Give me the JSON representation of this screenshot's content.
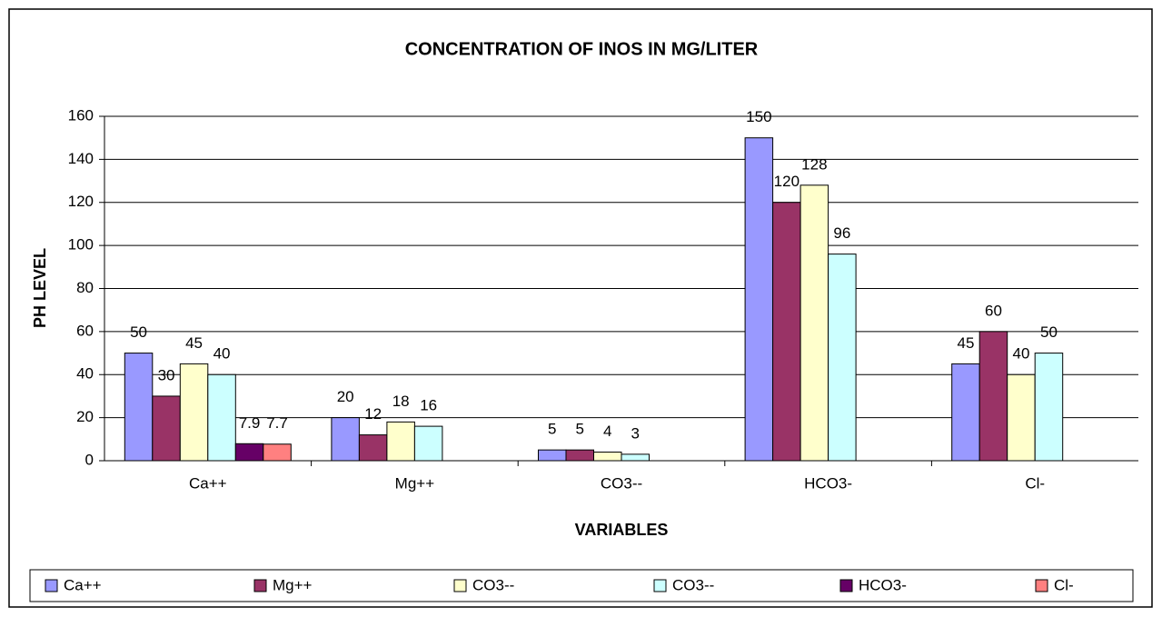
{
  "chart_data": {
    "type": "bar",
    "title": "CONCENTRATION OF INOS IN MG/LITER",
    "x_label": "VARIABLES",
    "y_label": "PH LEVEL",
    "categories": [
      "Ca++",
      "Mg++",
      "CO3--",
      "HCO3-",
      "Cl-"
    ],
    "series": [
      {
        "name": "Ca++",
        "color": "#9999ff",
        "values": [
          50,
          20,
          5,
          150,
          45
        ]
      },
      {
        "name": "Mg++",
        "color": "#993366",
        "values": [
          30,
          12,
          5,
          120,
          60
        ]
      },
      {
        "name": "CO3--",
        "color": "#ffffcc",
        "values": [
          45,
          18,
          4,
          128,
          40
        ]
      },
      {
        "name": "CO3--",
        "color": "#ccffff",
        "values": [
          40,
          16,
          3,
          96,
          50
        ]
      },
      {
        "name": "HCO3-",
        "color": "#660066",
        "values": [
          7.9,
          null,
          null,
          null,
          null
        ]
      },
      {
        "name": "Cl-",
        "color": "#ff8080",
        "values": [
          7.7,
          null,
          null,
          null,
          null
        ]
      }
    ],
    "ylim": [
      0,
      160
    ],
    "yticks": [
      0,
      20,
      40,
      60,
      80,
      100,
      120,
      140,
      160
    ],
    "grid": true,
    "legend": "bottom"
  }
}
